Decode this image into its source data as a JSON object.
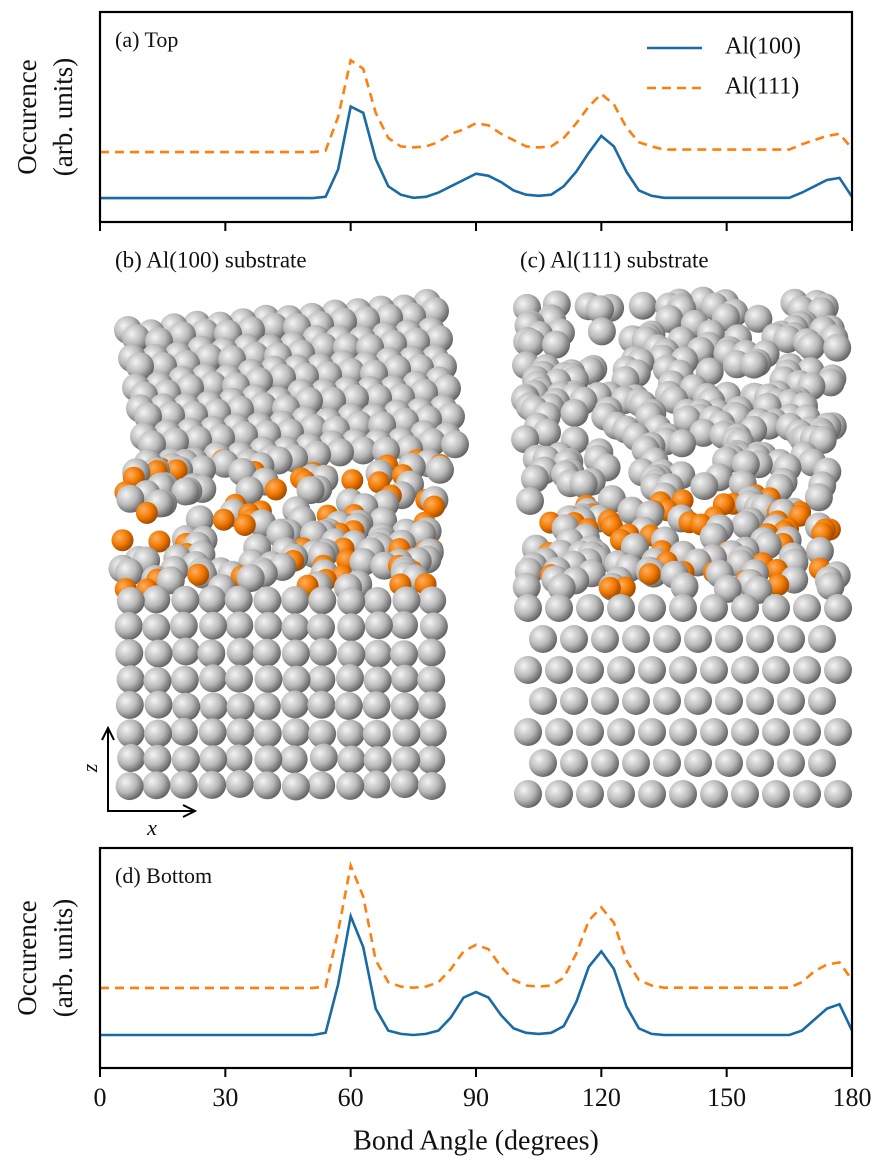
{
  "chart_data": [
    {
      "type": "line",
      "title": "(a) Top",
      "ylabel": [
        "Occurence",
        "(arb. units)"
      ],
      "x": [
        0,
        3,
        6,
        9,
        12,
        15,
        18,
        21,
        24,
        27,
        30,
        33,
        36,
        39,
        42,
        45,
        48,
        51,
        54,
        57,
        60,
        63,
        66,
        69,
        72,
        75,
        78,
        81,
        84,
        87,
        90,
        93,
        96,
        99,
        102,
        105,
        108,
        111,
        114,
        117,
        120,
        123,
        126,
        129,
        132,
        135,
        138,
        141,
        144,
        147,
        150,
        153,
        156,
        159,
        162,
        165,
        168,
        171,
        174,
        177,
        180
      ],
      "series": [
        {
          "name": "Al(100)",
          "color": "#1a6aa5",
          "dash": false,
          "values": [
            0.114,
            0.114,
            0.114,
            0.114,
            0.114,
            0.114,
            0.114,
            0.114,
            0.114,
            0.114,
            0.114,
            0.114,
            0.114,
            0.114,
            0.114,
            0.114,
            0.114,
            0.114,
            0.12,
            0.25,
            0.55,
            0.52,
            0.3,
            0.17,
            0.13,
            0.115,
            0.12,
            0.14,
            0.17,
            0.2,
            0.23,
            0.22,
            0.19,
            0.15,
            0.13,
            0.125,
            0.13,
            0.17,
            0.24,
            0.33,
            0.41,
            0.36,
            0.24,
            0.15,
            0.125,
            0.115,
            0.115,
            0.115,
            0.115,
            0.115,
            0.115,
            0.115,
            0.115,
            0.115,
            0.115,
            0.115,
            0.14,
            0.17,
            0.2,
            0.21,
            0.12
          ]
        },
        {
          "name": "Al(111)",
          "color": "#ff7f0e",
          "dash": true,
          "values": [
            0.333,
            0.333,
            0.333,
            0.333,
            0.333,
            0.333,
            0.333,
            0.333,
            0.333,
            0.333,
            0.333,
            0.333,
            0.333,
            0.333,
            0.333,
            0.333,
            0.333,
            0.333,
            0.34,
            0.5,
            0.77,
            0.73,
            0.52,
            0.4,
            0.36,
            0.355,
            0.36,
            0.38,
            0.42,
            0.44,
            0.47,
            0.46,
            0.42,
            0.39,
            0.36,
            0.355,
            0.36,
            0.4,
            0.47,
            0.55,
            0.61,
            0.56,
            0.45,
            0.38,
            0.36,
            0.345,
            0.345,
            0.345,
            0.345,
            0.345,
            0.345,
            0.345,
            0.345,
            0.345,
            0.345,
            0.345,
            0.37,
            0.39,
            0.41,
            0.42,
            0.35
          ]
        }
      ],
      "xlim": [
        0,
        180
      ],
      "xticks": [
        0,
        30,
        60,
        90,
        120,
        150,
        180
      ],
      "xtick_labels": false,
      "ylim": [
        0,
        1
      ],
      "legend": "upper right"
    },
    {
      "type": "line",
      "title": "(d) Bottom",
      "ylabel": [
        "Occurence",
        "(arb. units)"
      ],
      "xlabel": "Bond Angle (degrees)",
      "x": [
        0,
        3,
        6,
        9,
        12,
        15,
        18,
        21,
        24,
        27,
        30,
        33,
        36,
        39,
        42,
        45,
        48,
        51,
        54,
        57,
        60,
        63,
        66,
        69,
        72,
        75,
        78,
        81,
        84,
        87,
        90,
        93,
        96,
        99,
        102,
        105,
        108,
        111,
        114,
        117,
        120,
        123,
        126,
        129,
        132,
        135,
        138,
        141,
        144,
        147,
        150,
        153,
        156,
        159,
        162,
        165,
        168,
        171,
        174,
        177,
        180
      ],
      "series": [
        {
          "color": "#1a6aa5",
          "dash": false,
          "values": [
            0.15,
            0.15,
            0.15,
            0.15,
            0.15,
            0.15,
            0.15,
            0.15,
            0.15,
            0.15,
            0.15,
            0.15,
            0.15,
            0.15,
            0.15,
            0.15,
            0.15,
            0.15,
            0.16,
            0.38,
            0.69,
            0.55,
            0.27,
            0.17,
            0.155,
            0.15,
            0.155,
            0.17,
            0.23,
            0.32,
            0.345,
            0.32,
            0.24,
            0.18,
            0.16,
            0.155,
            0.16,
            0.19,
            0.3,
            0.46,
            0.53,
            0.45,
            0.28,
            0.18,
            0.155,
            0.15,
            0.15,
            0.15,
            0.15,
            0.15,
            0.15,
            0.15,
            0.15,
            0.15,
            0.15,
            0.15,
            0.17,
            0.22,
            0.27,
            0.29,
            0.17
          ]
        },
        {
          "color": "#ff7f0e",
          "dash": true,
          "values": [
            0.364,
            0.364,
            0.364,
            0.364,
            0.364,
            0.364,
            0.364,
            0.364,
            0.364,
            0.364,
            0.364,
            0.364,
            0.364,
            0.364,
            0.364,
            0.364,
            0.364,
            0.364,
            0.37,
            0.62,
            0.92,
            0.78,
            0.49,
            0.39,
            0.37,
            0.365,
            0.37,
            0.39,
            0.45,
            0.53,
            0.56,
            0.54,
            0.46,
            0.4,
            0.375,
            0.37,
            0.375,
            0.41,
            0.52,
            0.67,
            0.73,
            0.66,
            0.49,
            0.4,
            0.375,
            0.365,
            0.365,
            0.365,
            0.365,
            0.365,
            0.365,
            0.365,
            0.365,
            0.365,
            0.365,
            0.365,
            0.39,
            0.44,
            0.47,
            0.48,
            0.4
          ]
        }
      ],
      "xlim": [
        0,
        180
      ],
      "xticks": [
        0,
        30,
        60,
        90,
        120,
        150,
        180
      ],
      "xtick_labels": true,
      "ylim": [
        0,
        1
      ],
      "legend": false
    }
  ],
  "image": {
    "left_label": "(b) Al(100) substrate",
    "right_label": "(c) Al(111) substrate",
    "axis_z": "z",
    "axis_x": "x"
  }
}
